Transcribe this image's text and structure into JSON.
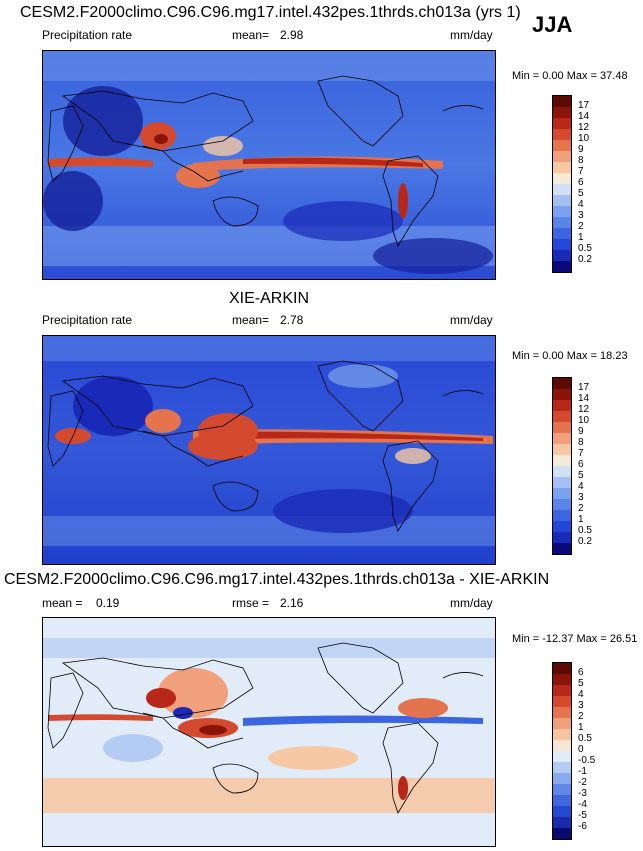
{
  "season": "JJA",
  "panels": [
    {
      "title": "CESM2.F2000climo.C96.C96.mg17.intel.432pes.1thrds.ch013a (yrs 1)",
      "left_label": "Precipitation rate",
      "mid_label": "mean=",
      "mid_value": "2.98",
      "right_label": "mm/day",
      "minmax": "Min =   0.00 Max =  37.48",
      "colorbar_labels": [
        "17",
        "14",
        "12",
        "10",
        "9",
        "8",
        "7",
        "6",
        "5",
        "4",
        "3",
        "2",
        "1",
        "0.5",
        "0.2"
      ]
    },
    {
      "title": "XIE-ARKIN",
      "left_label": "Precipitation rate",
      "mid_label": "mean=",
      "mid_value": "2.78",
      "right_label": "mm/day",
      "minmax": "Min =   0.00 Max =  18.23",
      "colorbar_labels": [
        "17",
        "14",
        "12",
        "10",
        "9",
        "8",
        "7",
        "6",
        "5",
        "4",
        "3",
        "2",
        "1",
        "0.5",
        "0.2"
      ]
    },
    {
      "title": "CESM2.F2000climo.C96.C96.mg17.intel.432pes.1thrds.ch013a - XIE-ARKIN",
      "left_label": "mean =",
      "left_value": "0.19",
      "mid_label": "rmse =",
      "mid_value": "2.16",
      "right_label": "mm/day",
      "minmax": "Min = -12.37 Max =  26.51",
      "colorbar_labels": [
        "6",
        "5",
        "4",
        "3",
        "2",
        "1",
        "0.5",
        "0",
        "-0.5",
        "-1",
        "-2",
        "-3",
        "-4",
        "-5",
        "-6"
      ]
    }
  ],
  "colors": {
    "precip_scale": [
      "#0a0a7a",
      "#1a2ab8",
      "#2348d8",
      "#3c66e0",
      "#5a84e8",
      "#7aa2ee",
      "#a4c0f2",
      "#d2e0f6",
      "#f6ead8",
      "#f6c8a4",
      "#f0a07a",
      "#e4744e",
      "#d44a2e",
      "#b82818",
      "#8a1408",
      "#5c0a04"
    ],
    "diff_scale": [
      "#0a0a6e",
      "#1a2aa8",
      "#2448d0",
      "#4068dc",
      "#6088e4",
      "#88aaee",
      "#b4ccf4",
      "#e2ecf8",
      "#f8e6d4",
      "#f6c4a0",
      "#f0a07a",
      "#e4744e",
      "#d44a2e",
      "#b82818",
      "#8a1408",
      "#5c0a04"
    ]
  }
}
